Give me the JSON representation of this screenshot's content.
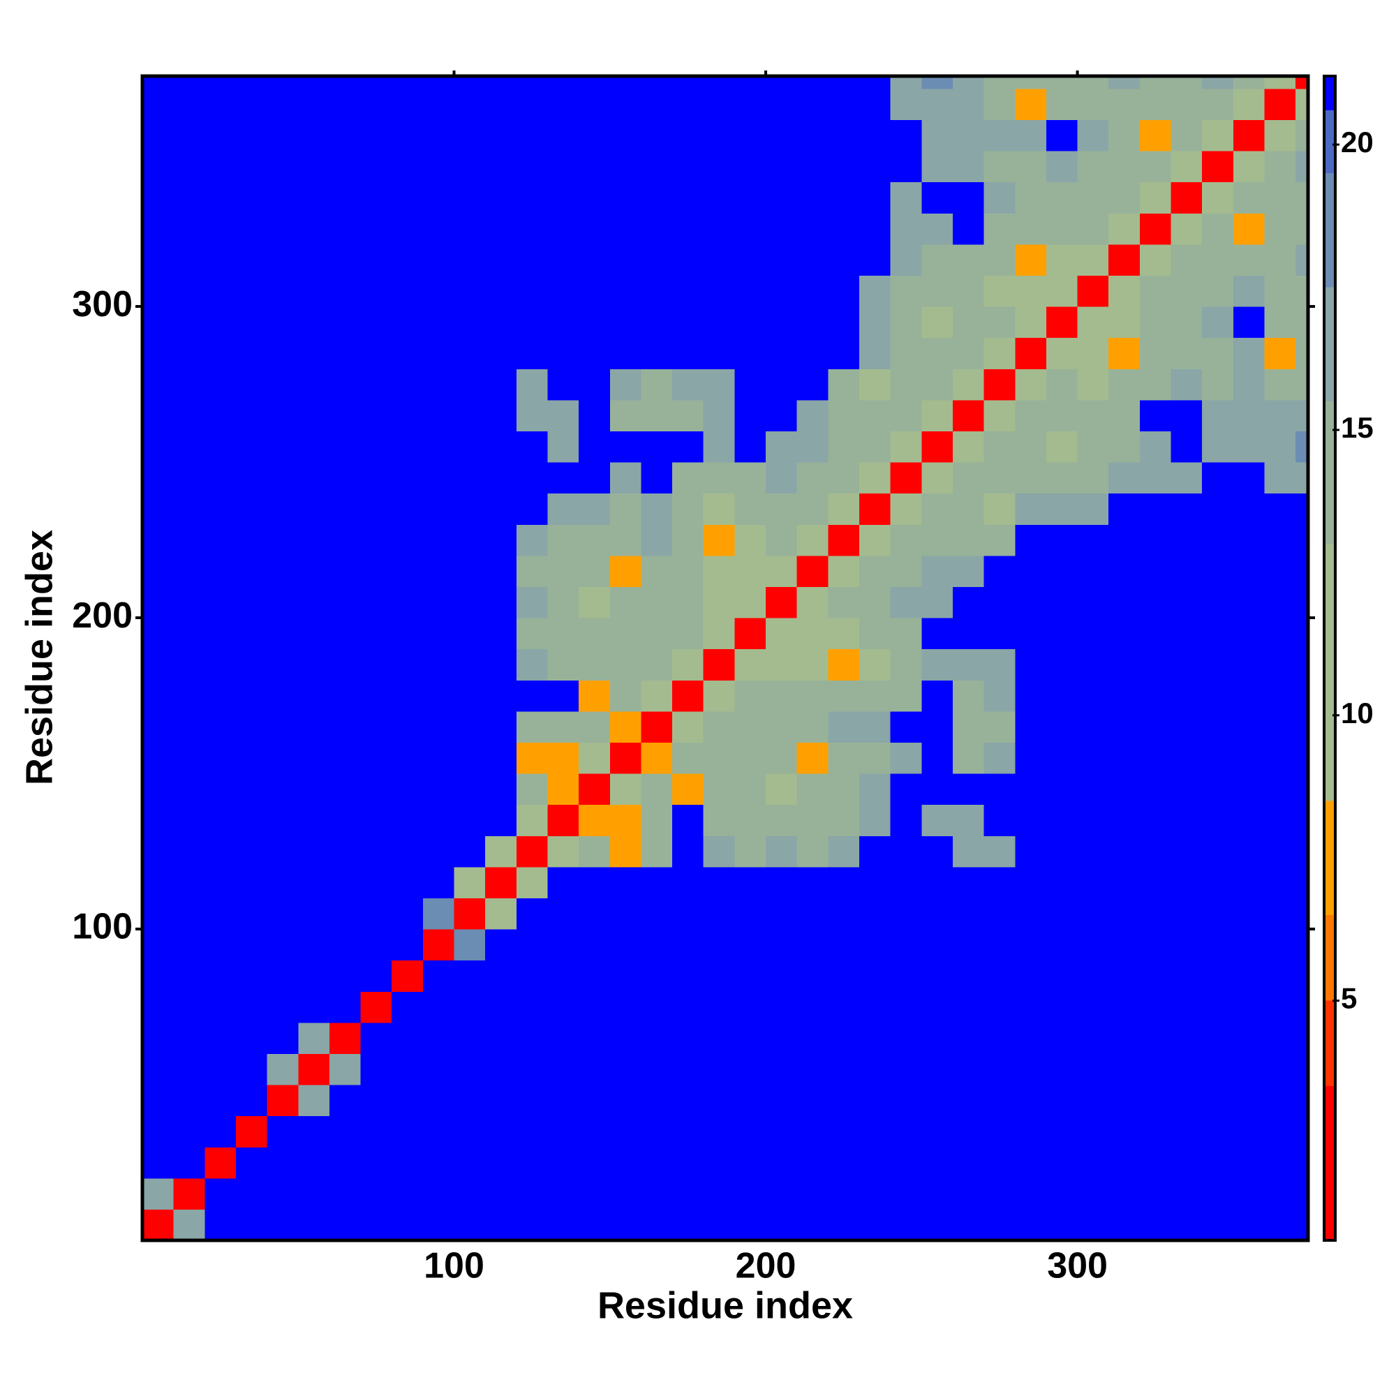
{
  "chart_data": {
    "type": "heatmap",
    "xlabel": "Residue index",
    "ylabel": "Residue index",
    "xlim": [
      0,
      374
    ],
    "ylim": [
      0,
      374
    ],
    "xticks": [
      100,
      200,
      300
    ],
    "yticks": [
      100,
      200,
      300
    ],
    "clim": [
      0.8,
      21.2
    ],
    "cticks": [
      5,
      10,
      15,
      20
    ],
    "colorscale": [
      [
        0.8,
        "#ff0000"
      ],
      [
        3.5,
        "#ff3300"
      ],
      [
        5,
        "#ff7700"
      ],
      [
        6.5,
        "#ffa000"
      ],
      [
        8.5,
        "#a4bb8f"
      ],
      [
        13,
        "#98b29a"
      ],
      [
        15.5,
        "#8aa6a6"
      ],
      [
        17.5,
        "#6b8cb3"
      ],
      [
        19.5,
        "#4a6ac4"
      ],
      [
        20.6,
        "#0000ff"
      ]
    ],
    "x": [
      0,
      10,
      20,
      30,
      40,
      50,
      60,
      70,
      80,
      90,
      100,
      110,
      120,
      130,
      140,
      150,
      160,
      170,
      180,
      190,
      200,
      210,
      220,
      230,
      240,
      250,
      260,
      270,
      280,
      290,
      300,
      310,
      320,
      330,
      340,
      350,
      360,
      370
    ],
    "y": [
      0,
      10,
      20,
      30,
      40,
      50,
      60,
      70,
      80,
      90,
      100,
      110,
      120,
      130,
      140,
      150,
      160,
      170,
      180,
      190,
      200,
      210,
      220,
      230,
      240,
      250,
      260,
      270,
      280,
      290,
      300,
      310,
      320,
      330,
      340,
      350,
      360,
      370
    ],
    "z": [
      [
        3,
        16,
        21,
        21,
        21,
        21,
        21,
        21,
        21,
        21,
        21,
        21,
        21,
        21,
        21,
        21,
        21,
        21,
        21,
        21,
        21,
        21,
        21,
        21,
        21,
        21,
        21,
        21,
        21,
        21,
        21,
        21,
        21,
        21,
        21,
        21,
        21,
        21
      ],
      [
        16,
        3,
        21,
        21,
        21,
        21,
        21,
        21,
        21,
        21,
        21,
        21,
        21,
        21,
        21,
        21,
        21,
        21,
        21,
        21,
        21,
        21,
        21,
        21,
        21,
        21,
        21,
        21,
        21,
        21,
        21,
        21,
        21,
        21,
        21,
        21,
        21,
        21
      ],
      [
        21,
        21,
        3,
        21,
        21,
        21,
        21,
        21,
        21,
        21,
        21,
        21,
        21,
        21,
        21,
        21,
        21,
        21,
        21,
        21,
        21,
        21,
        21,
        21,
        21,
        21,
        21,
        21,
        21,
        21,
        21,
        21,
        21,
        21,
        21,
        21,
        21,
        21
      ],
      [
        21,
        21,
        21,
        3,
        21,
        21,
        21,
        21,
        21,
        21,
        21,
        21,
        21,
        21,
        21,
        21,
        21,
        21,
        21,
        21,
        21,
        21,
        21,
        21,
        21,
        21,
        21,
        21,
        21,
        21,
        21,
        21,
        21,
        21,
        21,
        21,
        21,
        21
      ],
      [
        21,
        21,
        21,
        21,
        3,
        16,
        21,
        21,
        21,
        21,
        21,
        21,
        21,
        21,
        21,
        21,
        21,
        21,
        21,
        21,
        21,
        21,
        21,
        21,
        21,
        21,
        21,
        21,
        21,
        21,
        21,
        21,
        21,
        21,
        21,
        21,
        21,
        21
      ],
      [
        21,
        21,
        21,
        21,
        16,
        3,
        16,
        21,
        21,
        21,
        21,
        21,
        21,
        21,
        21,
        21,
        21,
        21,
        21,
        21,
        21,
        21,
        21,
        21,
        21,
        21,
        21,
        21,
        21,
        21,
        21,
        21,
        21,
        21,
        21,
        21,
        21,
        21
      ],
      [
        21,
        21,
        21,
        21,
        21,
        16,
        3,
        21,
        21,
        21,
        21,
        21,
        21,
        21,
        21,
        21,
        21,
        21,
        21,
        21,
        21,
        21,
        21,
        21,
        21,
        21,
        21,
        21,
        21,
        21,
        21,
        21,
        21,
        21,
        21,
        21,
        21,
        21
      ],
      [
        21,
        21,
        21,
        21,
        21,
        21,
        21,
        3,
        21,
        21,
        21,
        21,
        21,
        21,
        21,
        21,
        21,
        21,
        21,
        21,
        21,
        21,
        21,
        21,
        21,
        21,
        21,
        21,
        21,
        21,
        21,
        21,
        21,
        21,
        21,
        21,
        21,
        21
      ],
      [
        21,
        21,
        21,
        21,
        21,
        21,
        21,
        21,
        3,
        21,
        21,
        21,
        21,
        21,
        21,
        21,
        21,
        21,
        21,
        21,
        21,
        21,
        21,
        21,
        21,
        21,
        21,
        21,
        21,
        21,
        21,
        21,
        21,
        21,
        21,
        21,
        21,
        21
      ],
      [
        21,
        21,
        21,
        21,
        21,
        21,
        21,
        21,
        21,
        3,
        18,
        21,
        21,
        21,
        21,
        21,
        21,
        21,
        21,
        21,
        21,
        21,
        21,
        21,
        21,
        21,
        21,
        21,
        21,
        21,
        21,
        21,
        21,
        21,
        21,
        21,
        21,
        21
      ],
      [
        21,
        21,
        21,
        21,
        21,
        21,
        21,
        21,
        21,
        18,
        3,
        12,
        21,
        21,
        21,
        21,
        21,
        21,
        21,
        21,
        21,
        21,
        21,
        21,
        21,
        21,
        21,
        21,
        21,
        21,
        21,
        21,
        21,
        21,
        21,
        21,
        21,
        21
      ],
      [
        21,
        21,
        21,
        21,
        21,
        21,
        21,
        21,
        21,
        21,
        12,
        3,
        12,
        21,
        21,
        21,
        21,
        21,
        21,
        21,
        21,
        21,
        21,
        21,
        21,
        21,
        21,
        21,
        21,
        21,
        21,
        21,
        21,
        21,
        21,
        21,
        21,
        21
      ],
      [
        21,
        21,
        21,
        21,
        21,
        21,
        21,
        21,
        21,
        21,
        21,
        12,
        3,
        12,
        13,
        8,
        13,
        21,
        16,
        15,
        16,
        15,
        17,
        21,
        21,
        21,
        17,
        17,
        21,
        21,
        21,
        21,
        21,
        21,
        21,
        21,
        21,
        21
      ],
      [
        21,
        21,
        21,
        21,
        21,
        21,
        21,
        21,
        21,
        21,
        21,
        21,
        12,
        3,
        8,
        8,
        13,
        21,
        15,
        14,
        14,
        13,
        15,
        17,
        21,
        17,
        17,
        21,
        21,
        21,
        21,
        21,
        21,
        21,
        21,
        21,
        21,
        21
      ],
      [
        21,
        21,
        21,
        21,
        21,
        21,
        21,
        21,
        21,
        21,
        21,
        21,
        13,
        8,
        3,
        12,
        13,
        8,
        14,
        13,
        12,
        13,
        15,
        17,
        21,
        21,
        21,
        21,
        21,
        21,
        21,
        21,
        21,
        21,
        21,
        21,
        21,
        21
      ],
      [
        21,
        21,
        21,
        21,
        21,
        21,
        21,
        21,
        21,
        21,
        21,
        21,
        8,
        8,
        12,
        3,
        8,
        13,
        13,
        14,
        13,
        8,
        13,
        15,
        17,
        21,
        15,
        17,
        21,
        21,
        21,
        21,
        21,
        21,
        21,
        21,
        21,
        21
      ],
      [
        21,
        21,
        21,
        21,
        21,
        21,
        21,
        21,
        21,
        21,
        21,
        21,
        13,
        13,
        13,
        8,
        3,
        12,
        13,
        13,
        13,
        14,
        16,
        17,
        21,
        21,
        14,
        15,
        21,
        21,
        21,
        21,
        21,
        21,
        21,
        21,
        21,
        21
      ],
      [
        21,
        21,
        21,
        21,
        21,
        21,
        21,
        21,
        21,
        21,
        21,
        21,
        21,
        21,
        8,
        13,
        12,
        3,
        12,
        13,
        14,
        13,
        14,
        15,
        15,
        21,
        15,
        16,
        21,
        21,
        21,
        21,
        21,
        21,
        21,
        21,
        21,
        21
      ],
      [
        21,
        21,
        21,
        21,
        21,
        21,
        21,
        21,
        21,
        21,
        21,
        21,
        16,
        15,
        14,
        13,
        13,
        12,
        3,
        12,
        12,
        12,
        7,
        11,
        14,
        17,
        17,
        17,
        21,
        21,
        21,
        21,
        21,
        21,
        21,
        21,
        21,
        21
      ],
      [
        21,
        21,
        21,
        21,
        21,
        21,
        21,
        21,
        21,
        21,
        21,
        21,
        15,
        14,
        13,
        14,
        13,
        13,
        12,
        3,
        12,
        12,
        12,
        13,
        15,
        21,
        21,
        21,
        21,
        21,
        21,
        21,
        21,
        21,
        21,
        21,
        21,
        21
      ],
      [
        21,
        21,
        21,
        21,
        21,
        21,
        21,
        21,
        21,
        21,
        21,
        21,
        16,
        14,
        12,
        13,
        13,
        14,
        12,
        12,
        3,
        12,
        14,
        15,
        16,
        17,
        21,
        21,
        21,
        21,
        21,
        21,
        21,
        21,
        21,
        21,
        21,
        21
      ],
      [
        21,
        21,
        21,
        21,
        21,
        21,
        21,
        21,
        21,
        21,
        21,
        21,
        15,
        13,
        13,
        8,
        14,
        13,
        12,
        12,
        12,
        3,
        12,
        14,
        14,
        16,
        16,
        21,
        21,
        21,
        21,
        21,
        21,
        21,
        21,
        21,
        21,
        21
      ],
      [
        21,
        21,
        21,
        21,
        21,
        21,
        21,
        21,
        21,
        21,
        21,
        21,
        17,
        15,
        15,
        13,
        16,
        14,
        7,
        12,
        14,
        12,
        3,
        12,
        13,
        13,
        14,
        15,
        21,
        21,
        21,
        21,
        21,
        21,
        21,
        21,
        21,
        21
      ],
      [
        21,
        21,
        21,
        21,
        21,
        21,
        21,
        21,
        21,
        21,
        21,
        21,
        21,
        17,
        17,
        15,
        17,
        15,
        11,
        13,
        15,
        14,
        12,
        3,
        12,
        13,
        13,
        11,
        16,
        16,
        17,
        21,
        21,
        21,
        21,
        21,
        21,
        21
      ],
      [
        21,
        21,
        21,
        21,
        21,
        21,
        21,
        21,
        21,
        21,
        21,
        21,
        21,
        21,
        21,
        17,
        21,
        15,
        14,
        15,
        16,
        14,
        13,
        12,
        3,
        12,
        14,
        14,
        15,
        14,
        15,
        16,
        16,
        17,
        21,
        21,
        17,
        17
      ],
      [
        21,
        21,
        21,
        21,
        21,
        21,
        21,
        21,
        21,
        21,
        21,
        21,
        21,
        17,
        21,
        21,
        21,
        21,
        17,
        21,
        17,
        16,
        13,
        13,
        12,
        3,
        12,
        13,
        14,
        11,
        13,
        15,
        17,
        21,
        17,
        17,
        17,
        18
      ],
      [
        21,
        21,
        21,
        21,
        21,
        21,
        21,
        21,
        21,
        21,
        21,
        21,
        17,
        17,
        21,
        15,
        14,
        15,
        17,
        21,
        21,
        16,
        14,
        13,
        14,
        12,
        3,
        12,
        13,
        13,
        14,
        15,
        21,
        21,
        16,
        16,
        16,
        17
      ],
      [
        21,
        21,
        21,
        21,
        21,
        21,
        21,
        21,
        21,
        21,
        21,
        21,
        17,
        21,
        21,
        17,
        15,
        16,
        17,
        21,
        21,
        21,
        15,
        11,
        14,
        13,
        12,
        3,
        12,
        13,
        12,
        13,
        15,
        17,
        15,
        16,
        14,
        15
      ],
      [
        21,
        21,
        21,
        21,
        21,
        21,
        21,
        21,
        21,
        21,
        21,
        21,
        21,
        21,
        21,
        21,
        21,
        21,
        21,
        21,
        21,
        21,
        21,
        16,
        15,
        14,
        13,
        12,
        3,
        12,
        12,
        8,
        13,
        15,
        14,
        16,
        7,
        13
      ],
      [
        21,
        21,
        21,
        21,
        21,
        21,
        21,
        21,
        21,
        21,
        21,
        21,
        21,
        21,
        21,
        21,
        21,
        21,
        21,
        21,
        21,
        21,
        21,
        16,
        14,
        11,
        13,
        13,
        12,
        3,
        12,
        12,
        13,
        15,
        17,
        21,
        14,
        15
      ],
      [
        21,
        21,
        21,
        21,
        21,
        21,
        21,
        21,
        21,
        21,
        21,
        21,
        21,
        21,
        21,
        21,
        21,
        21,
        21,
        21,
        21,
        21,
        21,
        17,
        15,
        13,
        14,
        12,
        12,
        12,
        3,
        12,
        13,
        13,
        14,
        16,
        15,
        15
      ],
      [
        21,
        21,
        21,
        21,
        21,
        21,
        21,
        21,
        21,
        21,
        21,
        21,
        21,
        21,
        21,
        21,
        21,
        21,
        21,
        21,
        21,
        21,
        21,
        21,
        16,
        15,
        15,
        13,
        8,
        12,
        12,
        3,
        12,
        14,
        13,
        13,
        15,
        16
      ],
      [
        21,
        21,
        21,
        21,
        21,
        21,
        21,
        21,
        21,
        21,
        21,
        21,
        21,
        21,
        21,
        21,
        21,
        21,
        21,
        21,
        21,
        21,
        21,
        21,
        16,
        17,
        21,
        15,
        13,
        13,
        13,
        12,
        3,
        12,
        13,
        8,
        13,
        14
      ],
      [
        21,
        21,
        21,
        21,
        21,
        21,
        21,
        21,
        21,
        21,
        21,
        21,
        21,
        21,
        21,
        21,
        21,
        21,
        21,
        21,
        21,
        21,
        21,
        21,
        17,
        21,
        21,
        17,
        15,
        15,
        13,
        14,
        12,
        3,
        12,
        13,
        14,
        15
      ],
      [
        21,
        21,
        21,
        21,
        21,
        21,
        21,
        21,
        21,
        21,
        21,
        21,
        21,
        21,
        21,
        21,
        21,
        21,
        21,
        21,
        21,
        21,
        21,
        21,
        21,
        17,
        16,
        15,
        14,
        17,
        14,
        13,
        13,
        12,
        3,
        12,
        13,
        16
      ],
      [
        21,
        21,
        21,
        21,
        21,
        21,
        21,
        21,
        21,
        21,
        21,
        21,
        21,
        21,
        21,
        21,
        21,
        21,
        21,
        21,
        21,
        21,
        21,
        21,
        21,
        17,
        16,
        16,
        16,
        21,
        16,
        13,
        8,
        13,
        12,
        3,
        12,
        13
      ],
      [
        21,
        21,
        21,
        21,
        21,
        21,
        21,
        21,
        21,
        21,
        21,
        21,
        21,
        21,
        21,
        21,
        21,
        21,
        21,
        21,
        21,
        21,
        21,
        21,
        17,
        17,
        16,
        14,
        7,
        14,
        15,
        15,
        13,
        14,
        13,
        12,
        3,
        12
      ],
      [
        21,
        21,
        21,
        21,
        21,
        21,
        21,
        21,
        21,
        21,
        21,
        21,
        21,
        21,
        21,
        21,
        21,
        21,
        21,
        21,
        21,
        21,
        21,
        21,
        17,
        18,
        17,
        15,
        13,
        15,
        15,
        16,
        14,
        15,
        16,
        13,
        12,
        3
      ]
    ]
  }
}
